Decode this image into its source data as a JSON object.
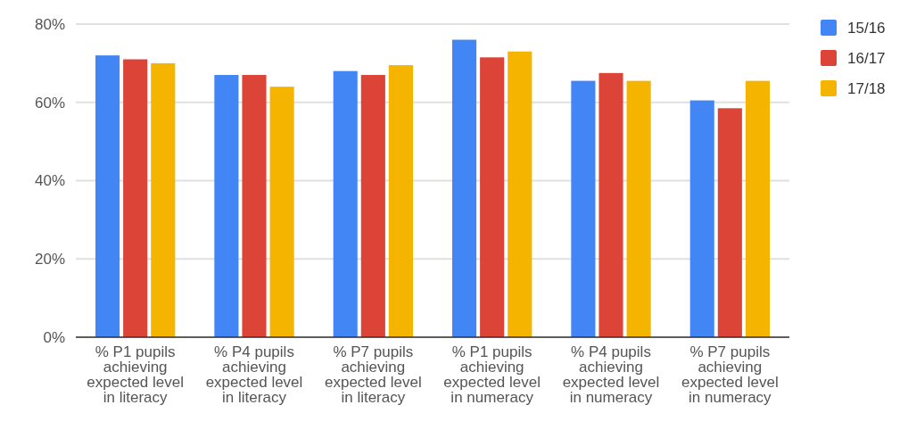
{
  "chart_data": {
    "type": "bar",
    "categories": [
      "% P1 pupils achieving expected level in literacy",
      "% P4 pupils achieving expected level in literacy",
      "% P7 pupils achieving expected level in literacy",
      "% P1 pupils achieving expected level in numeracy",
      "% P4 pupils achieving expected level in numeracy",
      "% P7 pupils achieving expected level in numeracy"
    ],
    "series": [
      {
        "name": "15/16",
        "color": "#4285f4",
        "values": [
          72,
          67,
          68,
          76,
          65.5,
          60.5
        ]
      },
      {
        "name": "16/17",
        "color": "#db4437",
        "values": [
          71,
          67,
          67,
          71.5,
          67.5,
          58.5
        ]
      },
      {
        "name": "17/18",
        "color": "#f4b400",
        "values": [
          70,
          64,
          69.5,
          73,
          65.5,
          65.5
        ]
      }
    ],
    "ylim": [
      0,
      80
    ],
    "yticks": [
      {
        "value": 0,
        "label": "0%"
      },
      {
        "value": 20,
        "label": "20%"
      },
      {
        "value": 40,
        "label": "40%"
      },
      {
        "value": 60,
        "label": "60%"
      },
      {
        "value": 80,
        "label": "80%"
      }
    ],
    "grid": "y",
    "legend": "right"
  }
}
